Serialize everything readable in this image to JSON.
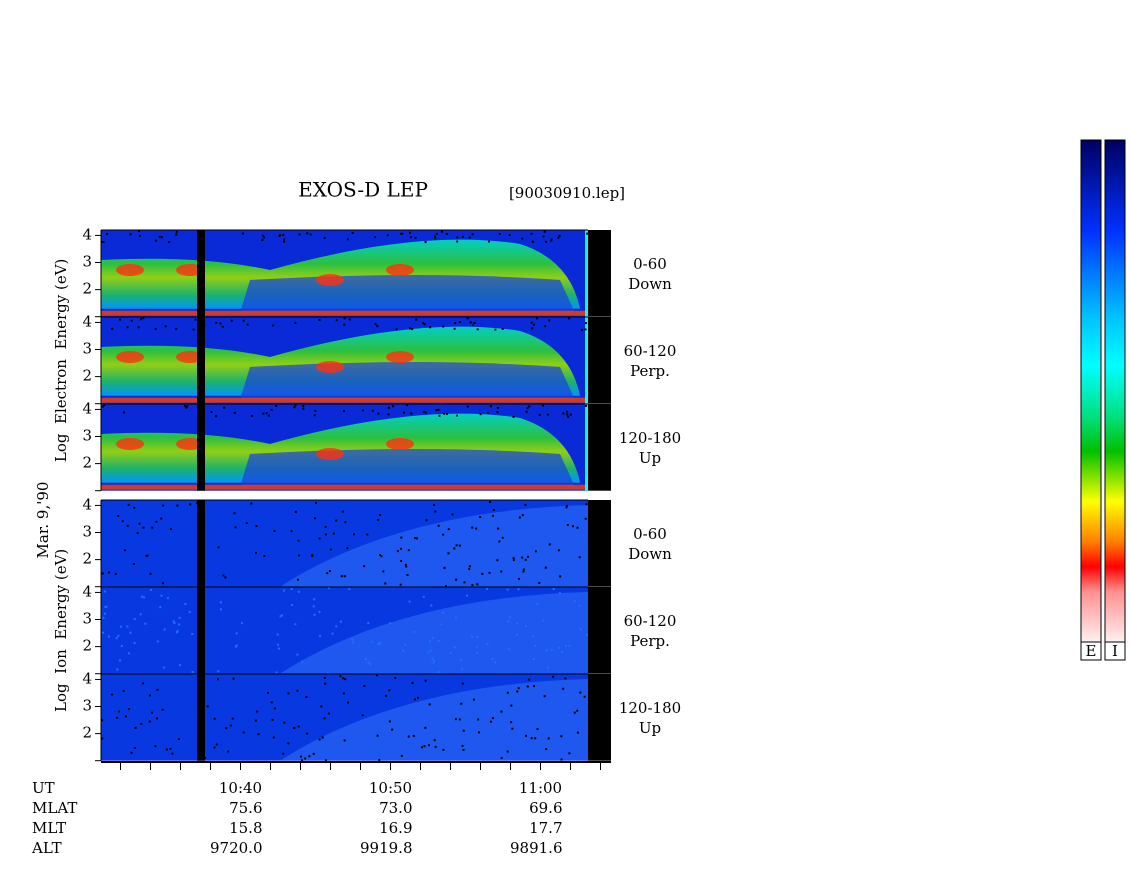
{
  "title": "EXOS-D LEP",
  "file": "[90030910.lep]",
  "date": "Mar. 9,'90",
  "panel_ylim": [
    1,
    4.2
  ],
  "panel_yticks": [
    2,
    3,
    4
  ],
  "groups": [
    {
      "ylabel": "Log  Electron  Energy (eV)",
      "species": "electron",
      "panels": [
        {
          "angle": "0-60",
          "direction": "Down"
        },
        {
          "angle": "60-120",
          "direction": "Perp."
        },
        {
          "angle": "120-180",
          "direction": "Up"
        }
      ]
    },
    {
      "ylabel": "Log  Ion  Energy (eV)",
      "species": "ion",
      "panels": [
        {
          "angle": "0-60",
          "direction": "Down"
        },
        {
          "angle": "60-120",
          "direction": "Perp."
        },
        {
          "angle": "120-180",
          "direction": "Up"
        }
      ]
    }
  ],
  "time_axis": {
    "xlim": [
      630.7,
      664.7
    ],
    "xticks": [
      {
        "value": 640,
        "label": "10:40"
      },
      {
        "value": 650,
        "label": "10:50"
      },
      {
        "value": 660,
        "label": "11:00"
      }
    ],
    "minor_ticks": [
      632,
      634,
      636,
      638,
      642,
      644,
      646,
      648,
      652,
      654,
      656,
      658,
      662,
      664
    ]
  },
  "ephemeris": {
    "rows": [
      {
        "label": "UT",
        "values": []
      },
      {
        "label": "MLAT",
        "values": [
          "75.6",
          "73.0",
          "69.6"
        ]
      },
      {
        "label": "MLT",
        "values": [
          "15.8",
          "16.9",
          "17.7"
        ]
      },
      {
        "label": "ALT",
        "values": [
          "9720.0",
          "9919.8",
          "9891.6"
        ]
      }
    ]
  },
  "colorbars": [
    "E",
    "I"
  ]
}
